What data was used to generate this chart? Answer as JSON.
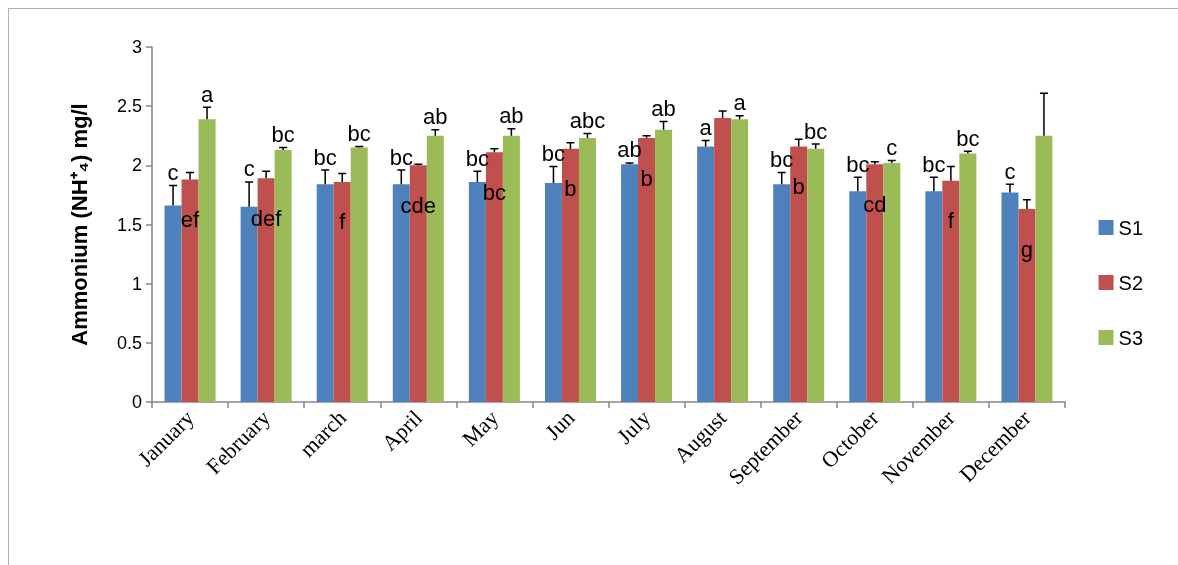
{
  "chart_data": {
    "type": "bar",
    "ylabel": "Ammonium (NH⁺₄) mg/l",
    "categories": [
      "January",
      "February",
      "march",
      "April",
      "May",
      "Jun",
      "July",
      "August",
      "September",
      "October",
      "November",
      "December"
    ],
    "series": [
      {
        "name": "S1",
        "color": "#4f81bd",
        "values": [
          1.66,
          1.65,
          1.84,
          1.84,
          1.86,
          1.85,
          2.01,
          2.16,
          1.84,
          1.78,
          1.78,
          1.77
        ],
        "errors": [
          [
            1.66,
            1.83
          ],
          [
            1.65,
            1.86
          ],
          [
            1.84,
            1.96
          ],
          [
            1.84,
            1.96
          ],
          [
            1.86,
            1.95
          ],
          [
            1.85,
            1.99
          ],
          [
            2.01,
            2.02
          ],
          [
            2.16,
            2.21
          ],
          [
            1.84,
            1.94
          ],
          [
            1.78,
            1.9
          ],
          [
            1.78,
            1.9
          ],
          [
            1.77,
            1.84
          ]
        ],
        "value_labels": [
          "c",
          "c",
          "bc",
          "bc",
          "bc",
          "bc",
          "ab",
          "a",
          "bc",
          "bc",
          "bc",
          "c"
        ]
      },
      {
        "name": "S2",
        "color": "#c0504d",
        "values": [
          1.88,
          1.89,
          1.86,
          2.0,
          2.11,
          2.14,
          2.23,
          2.4,
          2.16,
          2.01,
          1.87,
          1.63
        ],
        "errors": [
          [
            1.88,
            1.94
          ],
          [
            1.89,
            1.95
          ],
          [
            1.86,
            1.93
          ],
          [
            2.0,
            2.01
          ],
          [
            2.11,
            2.14
          ],
          [
            2.14,
            2.19
          ],
          [
            2.23,
            2.25
          ],
          [
            2.4,
            2.46
          ],
          [
            2.16,
            2.22
          ],
          [
            2.01,
            2.03
          ],
          [
            1.87,
            1.99
          ],
          [
            1.63,
            1.71
          ]
        ],
        "value_labels": [
          "ef",
          "def",
          "f",
          "cde",
          "bc",
          "b",
          "b",
          null,
          "b",
          "cd",
          "f",
          "g"
        ]
      },
      {
        "name": "S3",
        "color": "#9bbb59",
        "values": [
          2.39,
          2.13,
          2.15,
          2.25,
          2.25,
          2.23,
          2.3,
          2.39,
          2.14,
          2.02,
          2.1,
          2.25
        ],
        "errors": [
          [
            2.39,
            2.49
          ],
          [
            2.13,
            2.15
          ],
          [
            2.15,
            2.16
          ],
          [
            2.25,
            2.3
          ],
          [
            2.25,
            2.31
          ],
          [
            2.23,
            2.27
          ],
          [
            2.3,
            2.37
          ],
          [
            2.39,
            2.42
          ],
          [
            2.14,
            2.18
          ],
          [
            2.02,
            2.04
          ],
          [
            2.1,
            2.12
          ],
          [
            2.25,
            2.61
          ]
        ],
        "value_labels": [
          "a",
          "bc",
          "bc",
          "ab",
          "ab",
          "abc",
          "ab",
          "a",
          "bc",
          "c",
          "bc",
          null
        ]
      }
    ],
    "ylim": [
      0,
      3
    ],
    "yticks": [
      0,
      0.5,
      1,
      1.5,
      2,
      2.5,
      3
    ],
    "grid": false,
    "legend": "right"
  }
}
